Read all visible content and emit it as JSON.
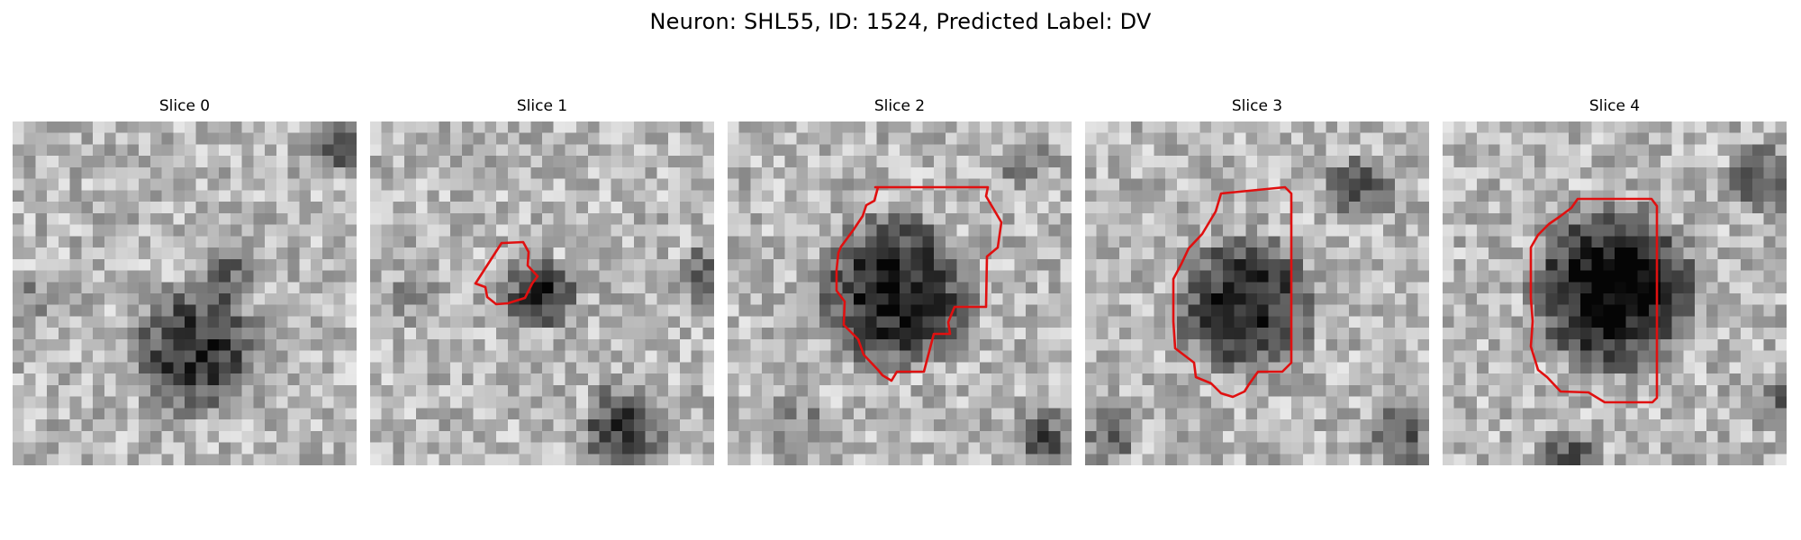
{
  "figure": {
    "title": "Neuron: SHL55, ID: 1524, Predicted Label: DV"
  },
  "panels": [
    {
      "title": "Slice 0",
      "has_contour": false,
      "contour_color": "#e01010"
    },
    {
      "title": "Slice 1",
      "has_contour": true,
      "contour_color": "#e01010"
    },
    {
      "title": "Slice 2",
      "has_contour": true,
      "contour_color": "#e01010"
    },
    {
      "title": "Slice 3",
      "has_contour": true,
      "contour_color": "#e01010"
    },
    {
      "title": "Slice 4",
      "has_contour": true,
      "contour_color": "#e01010"
    }
  ],
  "colormap": "gray"
}
